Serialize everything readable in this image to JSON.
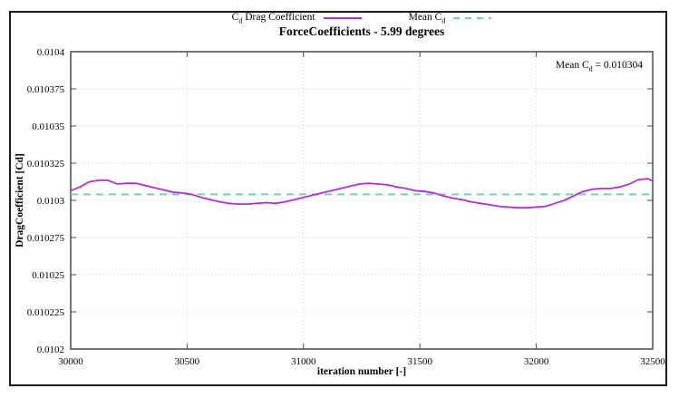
{
  "legend": {
    "cd": {
      "pre": "C",
      "sub": "d",
      "post": " Drag Coefficient"
    },
    "mean": {
      "pre": "Mean C",
      "sub": "d",
      "post": ""
    }
  },
  "annotation": {
    "pre": "Mean C",
    "sub": "d",
    "post": " = 0.010304"
  },
  "colors": {
    "frame": "#4a4a4a",
    "grid": "#cccccc",
    "series": "#b42dd8",
    "mean": "#74d3ae"
  },
  "chart_data": {
    "type": "line",
    "title": "ForceCoefficients - 5.99 degrees",
    "xlabel": "iteration number [-]",
    "ylabel": "DragCoefficient [Cd]",
    "xlim": [
      30000,
      32500
    ],
    "ylim": [
      0.0102,
      0.0104
    ],
    "grid": true,
    "legend_position": "above",
    "xticks": [
      30000,
      30500,
      31000,
      31500,
      32000,
      32500
    ],
    "xtick_labels": [
      "30000",
      "30500",
      "31000",
      "31500",
      "32000",
      "32500"
    ],
    "yticks": [
      0.0102,
      0.010225,
      0.01025,
      0.010275,
      0.0103,
      0.010325,
      0.01035,
      0.010375,
      0.0104
    ],
    "ytick_labels": [
      "0.0102",
      "0.010225",
      "0.01025",
      "0.010275",
      "0.0103",
      "0.010325",
      "0.01035",
      "0.010375",
      "0.0104"
    ],
    "annotation_text": "Mean Cd = 0.010304",
    "series": [
      {
        "name": "Cd Drag Coefficient",
        "color": "#b42dd8",
        "style": "solid",
        "x": [
          30000,
          30040,
          30080,
          30120,
          30160,
          30200,
          30240,
          30280,
          30320,
          30360,
          30400,
          30440,
          30480,
          30520,
          30560,
          30600,
          30640,
          30680,
          30720,
          30760,
          30800,
          30840,
          30880,
          30920,
          30960,
          31000,
          31040,
          31080,
          31120,
          31160,
          31200,
          31240,
          31280,
          31320,
          31360,
          31400,
          31440,
          31480,
          31520,
          31560,
          31600,
          31640,
          31680,
          31720,
          31760,
          31800,
          31840,
          31880,
          31920,
          31960,
          32000,
          32040,
          32080,
          32120,
          32160,
          32200,
          32240,
          32280,
          32320,
          32360,
          32400,
          32440,
          32480,
          32500
        ],
        "y": [
          0.0103065,
          0.010309,
          0.0103125,
          0.0103135,
          0.0103135,
          0.010311,
          0.0103115,
          0.0103115,
          0.01031,
          0.0103085,
          0.010307,
          0.0103055,
          0.010305,
          0.010304,
          0.010302,
          0.0103005,
          0.010299,
          0.010298,
          0.0102975,
          0.0102975,
          0.010298,
          0.0102985,
          0.010298,
          0.010299,
          0.0103005,
          0.010302,
          0.0103035,
          0.010305,
          0.0103065,
          0.010308,
          0.0103095,
          0.010311,
          0.0103115,
          0.010311,
          0.0103105,
          0.010309,
          0.010308,
          0.0103065,
          0.010306,
          0.010305,
          0.010303,
          0.0103015,
          0.0103005,
          0.010299,
          0.010298,
          0.010297,
          0.010296,
          0.0102955,
          0.010295,
          0.010295,
          0.0102955,
          0.010296,
          0.010298,
          0.0103,
          0.010303,
          0.010306,
          0.0103075,
          0.010308,
          0.010308,
          0.010309,
          0.010311,
          0.010314,
          0.0103145,
          0.010313
        ]
      },
      {
        "name": "Mean Cd",
        "color": "#74d3ae",
        "style": "dashed",
        "value": 0.010304
      }
    ]
  }
}
